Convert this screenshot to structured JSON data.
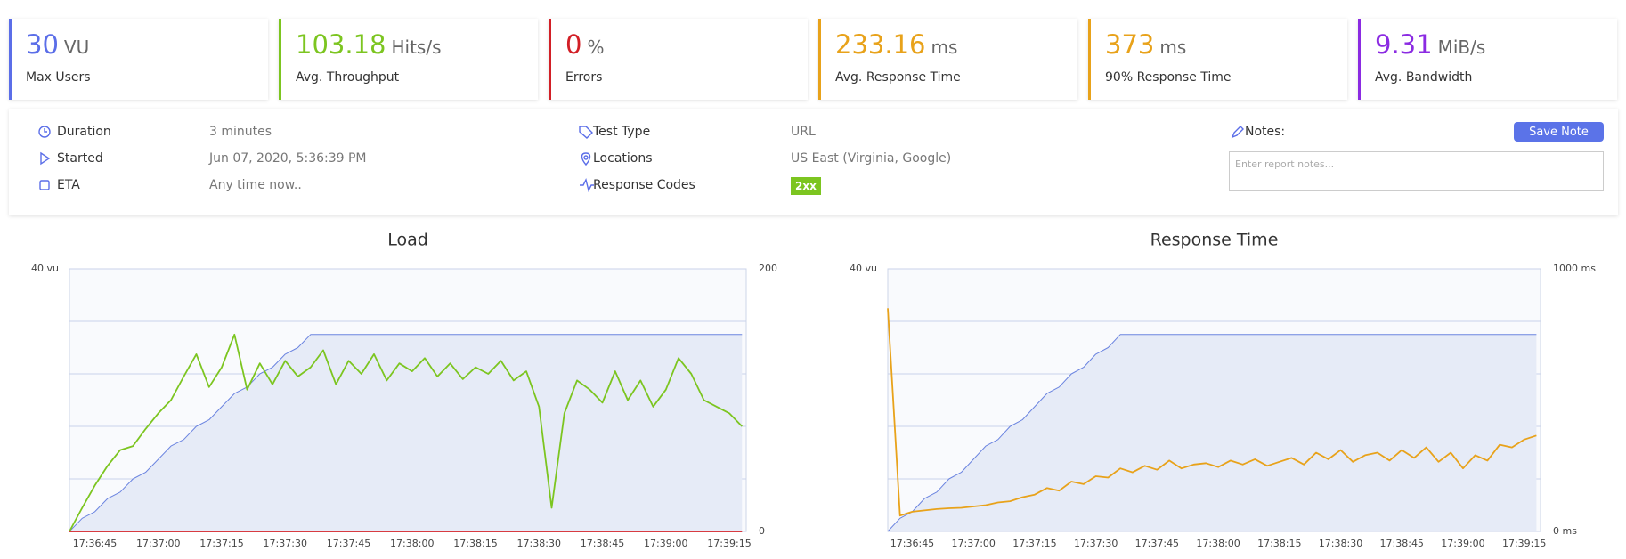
{
  "cards": [
    {
      "value": 30,
      "unit": "VU",
      "label": "Max Users",
      "color": "#5b6ee8"
    },
    {
      "value": 103.18,
      "unit": "Hits/s",
      "label": "Avg. Throughput",
      "color": "#7cc520"
    },
    {
      "value": 0,
      "unit": "%",
      "label": "Errors",
      "color": "#d21f26"
    },
    {
      "value": 233.16,
      "unit": "ms",
      "label": "Avg. Response Time",
      "color": "#e8a21a"
    },
    {
      "value": 373,
      "unit": "ms",
      "label": "90% Response Time",
      "color": "#e8a21a"
    },
    {
      "value": 9.31,
      "unit": "MiB/s",
      "label": "Avg. Bandwidth",
      "color": "#8b2be2"
    }
  ],
  "info": {
    "left": [
      {
        "label": "Duration",
        "value": "3 minutes"
      },
      {
        "label": "Started",
        "value": "Jun 07, 2020, 5:36:39 PM"
      },
      {
        "label": "ETA",
        "value": "Any time now.."
      }
    ],
    "middle": [
      {
        "label": "Test Type",
        "value": "URL"
      },
      {
        "label": "Locations",
        "value": "US East (Virginia, Google)"
      },
      {
        "label": "Response Codes",
        "value": "2xx"
      }
    ],
    "notes_label": "Notes:",
    "notes_placeholder": "Enter report notes...",
    "save_button": "Save Note"
  },
  "chart_data": [
    {
      "type": "line",
      "title": "Load",
      "x": [
        "17:36:39",
        "17:36:42",
        "17:36:45",
        "17:36:48",
        "17:36:51",
        "17:36:54",
        "17:36:57",
        "17:37:00",
        "17:37:03",
        "17:37:06",
        "17:37:09",
        "17:37:12",
        "17:37:15",
        "17:37:18",
        "17:37:21",
        "17:37:24",
        "17:37:27",
        "17:37:30",
        "17:37:33",
        "17:37:36",
        "17:37:39",
        "17:37:42",
        "17:37:45",
        "17:37:48",
        "17:37:51",
        "17:37:54",
        "17:37:57",
        "17:38:00",
        "17:38:03",
        "17:38:06",
        "17:38:09",
        "17:38:12",
        "17:38:15",
        "17:38:18",
        "17:38:21",
        "17:38:24",
        "17:38:27",
        "17:38:30",
        "17:38:33",
        "17:38:36",
        "17:38:39",
        "17:38:42",
        "17:38:45",
        "17:38:48",
        "17:38:51",
        "17:38:54",
        "17:38:57",
        "17:39:00",
        "17:39:03",
        "17:39:06",
        "17:39:09",
        "17:39:12",
        "17:39:15",
        "17:39:18"
      ],
      "xlim": [
        "17:36:39",
        "17:39:19"
      ],
      "xticks": [
        "17:36:45",
        "17:37:00",
        "17:37:15",
        "17:37:30",
        "17:37:45",
        "17:38:00",
        "17:38:15",
        "17:38:30",
        "17:38:45",
        "17:39:00",
        "17:39:15"
      ],
      "ylim": [
        0,
        40
      ],
      "yticks": [
        {
          "value": 0,
          "label": null
        },
        {
          "value": 8,
          "label": null
        },
        {
          "value": 16,
          "label": null
        },
        {
          "value": 24,
          "label": null
        },
        {
          "value": 32,
          "label": null
        },
        {
          "value": 40,
          "label": "40 vu"
        }
      ],
      "y2lim": [
        0,
        200
      ],
      "y2ticks": [
        0,
        200
      ],
      "grid": true,
      "series": [
        {
          "color": "#6b84e0",
          "fill_color": "#e6ebf7",
          "axis": "y",
          "values": [
            0,
            2,
            3,
            5,
            6,
            8,
            9,
            11,
            13,
            14,
            16,
            17,
            19,
            21,
            22,
            24,
            25,
            27,
            28,
            30,
            30,
            30,
            30,
            30,
            30,
            30,
            30,
            30,
            30,
            30,
            30,
            30,
            30,
            30,
            30,
            30,
            30,
            30,
            30,
            30,
            30,
            30,
            30,
            30,
            30,
            30,
            30,
            30,
            30,
            30,
            30,
            30,
            30,
            30
          ]
        },
        {
          "color": "#7cc520",
          "axis": "y2",
          "values": [
            0,
            18,
            35,
            50,
            62,
            65,
            78,
            90,
            100,
            118,
            135,
            110,
            125,
            150,
            108,
            128,
            112,
            130,
            118,
            125,
            138,
            112,
            130,
            120,
            135,
            115,
            128,
            122,
            132,
            118,
            128,
            116,
            125,
            120,
            130,
            115,
            122,
            95,
            18,
            90,
            115,
            108,
            98,
            122,
            100,
            115,
            95,
            108,
            132,
            120,
            100,
            95,
            90,
            80
          ]
        },
        {
          "color": "#d21f26",
          "axis": "y2",
          "values": [
            0,
            0,
            0,
            0,
            0,
            0,
            0,
            0,
            0,
            0,
            0,
            0,
            0,
            0,
            0,
            0,
            0,
            0,
            0,
            0,
            0,
            0,
            0,
            0,
            0,
            0,
            0,
            0,
            0,
            0,
            0,
            0,
            0,
            0,
            0,
            0,
            0,
            0,
            0,
            0,
            0,
            0,
            0,
            0,
            0,
            0,
            0,
            0,
            0,
            0,
            0,
            0,
            0,
            0
          ]
        }
      ]
    },
    {
      "type": "line",
      "title": "Response Time",
      "x": [
        "17:36:39",
        "17:36:42",
        "17:36:45",
        "17:36:48",
        "17:36:51",
        "17:36:54",
        "17:36:57",
        "17:37:00",
        "17:37:03",
        "17:37:06",
        "17:37:09",
        "17:37:12",
        "17:37:15",
        "17:37:18",
        "17:37:21",
        "17:37:24",
        "17:37:27",
        "17:37:30",
        "17:37:33",
        "17:37:36",
        "17:37:39",
        "17:37:42",
        "17:37:45",
        "17:37:48",
        "17:37:51",
        "17:37:54",
        "17:37:57",
        "17:38:00",
        "17:38:03",
        "17:38:06",
        "17:38:09",
        "17:38:12",
        "17:38:15",
        "17:38:18",
        "17:38:21",
        "17:38:24",
        "17:38:27",
        "17:38:30",
        "17:38:33",
        "17:38:36",
        "17:38:39",
        "17:38:42",
        "17:38:45",
        "17:38:48",
        "17:38:51",
        "17:38:54",
        "17:38:57",
        "17:39:00",
        "17:39:03",
        "17:39:06",
        "17:39:09",
        "17:39:12",
        "17:39:15",
        "17:39:18"
      ],
      "xlim": [
        "17:36:39",
        "17:39:19"
      ],
      "xticks": [
        "17:36:45",
        "17:37:00",
        "17:37:15",
        "17:37:30",
        "17:37:45",
        "17:38:00",
        "17:38:15",
        "17:38:30",
        "17:38:45",
        "17:39:00",
        "17:39:15"
      ],
      "ylim": [
        0,
        40
      ],
      "yticks": [
        {
          "value": 0,
          "label": null
        },
        {
          "value": 8,
          "label": null
        },
        {
          "value": 16,
          "label": null
        },
        {
          "value": 24,
          "label": null
        },
        {
          "value": 32,
          "label": null
        },
        {
          "value": 40,
          "label": "40 vu"
        }
      ],
      "y2lim": [
        0,
        1000
      ],
      "y2ticks": [
        {
          "value": 0,
          "label": "0 ms"
        },
        {
          "value": 1000,
          "label": "1000 ms"
        }
      ],
      "grid": true,
      "series": [
        {
          "color": "#6b84e0",
          "fill_color": "#e6ebf7",
          "axis": "y",
          "values": [
            0,
            2,
            3,
            5,
            6,
            8,
            9,
            11,
            13,
            14,
            16,
            17,
            19,
            21,
            22,
            24,
            25,
            27,
            28,
            30,
            30,
            30,
            30,
            30,
            30,
            30,
            30,
            30,
            30,
            30,
            30,
            30,
            30,
            30,
            30,
            30,
            30,
            30,
            30,
            30,
            30,
            30,
            30,
            30,
            30,
            30,
            30,
            30,
            30,
            30,
            30,
            30,
            30,
            30
          ]
        },
        {
          "color": "#e8a21a",
          "axis": "y2",
          "values": [
            850,
            60,
            75,
            80,
            85,
            88,
            90,
            95,
            100,
            110,
            115,
            130,
            140,
            165,
            155,
            190,
            180,
            210,
            205,
            240,
            225,
            250,
            235,
            270,
            240,
            255,
            260,
            245,
            270,
            255,
            275,
            250,
            265,
            280,
            255,
            300,
            275,
            310,
            265,
            290,
            300,
            270,
            310,
            280,
            320,
            265,
            300,
            240,
            290,
            270,
            330,
            320,
            350,
            365
          ]
        }
      ]
    }
  ]
}
